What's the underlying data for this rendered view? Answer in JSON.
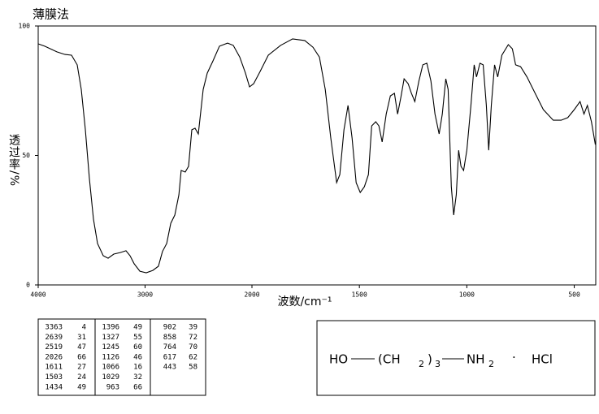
{
  "chart_data": {
    "type": "line",
    "title": "薄膜法",
    "x_label": "波数/cm⁻¹",
    "y_label": "透过率/%",
    "xlim": [
      4000,
      400
    ],
    "x_scale_change": 2000,
    "ylim": [
      0,
      100
    ],
    "xticks": [
      4000,
      3000,
      2000,
      1500,
      1000,
      500
    ],
    "yticks": [
      0,
      50,
      100
    ],
    "series": [
      {
        "color": "#000000",
        "x": [
          4000,
          3939,
          3886,
          3825,
          3749,
          3688,
          3635,
          3597,
          3559,
          3521,
          3483,
          3445,
          3392,
          3346,
          3293,
          3232,
          3179,
          3141,
          3103,
          3049,
          2989,
          2928,
          2875,
          2837,
          2798,
          2760,
          2722,
          2684,
          2662,
          2624,
          2593,
          2563,
          2532,
          2502,
          2456,
          2418,
          2365,
          2304,
          2228,
          2175,
          2114,
          2061,
          2023,
          1992,
          1962,
          1924,
          1867,
          1811,
          1754,
          1716,
          1686,
          1659,
          1633,
          1606,
          1591,
          1572,
          1553,
          1534,
          1515,
          1496,
          1477,
          1458,
          1443,
          1424,
          1409,
          1394,
          1375,
          1356,
          1337,
          1322,
          1307,
          1292,
          1273,
          1258,
          1242,
          1223,
          1205,
          1186,
          1167,
          1148,
          1129,
          1114,
          1098,
          1087,
          1072,
          1061,
          1049,
          1038,
          1027,
          1015,
          1000,
          981,
          966,
          955,
          939,
          924,
          909,
          898,
          886,
          871,
          856,
          837,
          807,
          788,
          773,
          750,
          720,
          682,
          644,
          598,
          561,
          530,
          500,
          473,
          455,
          439,
          420,
          402
        ],
        "values": [
          93.1,
          92.2,
          91.2,
          90,
          89,
          88.7,
          85,
          75.5,
          60,
          41,
          25.4,
          16,
          11.3,
          10.3,
          11.9,
          12.5,
          13.2,
          11.3,
          8.2,
          5.3,
          4.7,
          5.6,
          7.2,
          12.9,
          16,
          23.8,
          27,
          34.8,
          44.2,
          43.6,
          45.8,
          59.9,
          60.5,
          58.3,
          75.5,
          81.8,
          86.5,
          92.2,
          93.4,
          92.5,
          88,
          81.8,
          76.5,
          77.7,
          82.4,
          88.7,
          92.5,
          95,
          94.4,
          91.8,
          88,
          75.5,
          56.7,
          39.5,
          42.6,
          59.9,
          69.3,
          56.7,
          39.5,
          35.7,
          37.9,
          42.6,
          61.4,
          63,
          61.4,
          55.2,
          66,
          73,
          74,
          66,
          72.4,
          79.6,
          77.7,
          74,
          70.8,
          78.7,
          85,
          85.6,
          78.7,
          66,
          58.3,
          66,
          79.6,
          75.5,
          37.9,
          27,
          34.8,
          52,
          45.8,
          44.2,
          52,
          69.3,
          85,
          80.3,
          85.6,
          85,
          69.3,
          52,
          69.3,
          85,
          80.3,
          88.7,
          92.8,
          91.2,
          85,
          84.3,
          80.3,
          74,
          67.7,
          63.6,
          63.6,
          64.6,
          67.7,
          70.8,
          66,
          69.3,
          63,
          54.2
        ]
      }
    ]
  },
  "peak_table": {
    "columns": [
      [
        [
          3363,
          4
        ],
        [
          2639,
          31
        ],
        [
          2519,
          47
        ],
        [
          2026,
          66
        ],
        [
          1611,
          27
        ],
        [
          1503,
          24
        ],
        [
          1434,
          49
        ]
      ],
      [
        [
          1396,
          49
        ],
        [
          1327,
          55
        ],
        [
          1245,
          60
        ],
        [
          1126,
          46
        ],
        [
          1066,
          16
        ],
        [
          1029,
          32
        ],
        [
          963,
          66
        ]
      ],
      [
        [
          902,
          39
        ],
        [
          858,
          72
        ],
        [
          764,
          70
        ],
        [
          617,
          62
        ],
        [
          443,
          58
        ]
      ]
    ]
  },
  "structure": {
    "formula": [
      "HO",
      "(CH",
      "2",
      ")",
      "3",
      "NH",
      "2",
      "·",
      "HCl"
    ]
  }
}
